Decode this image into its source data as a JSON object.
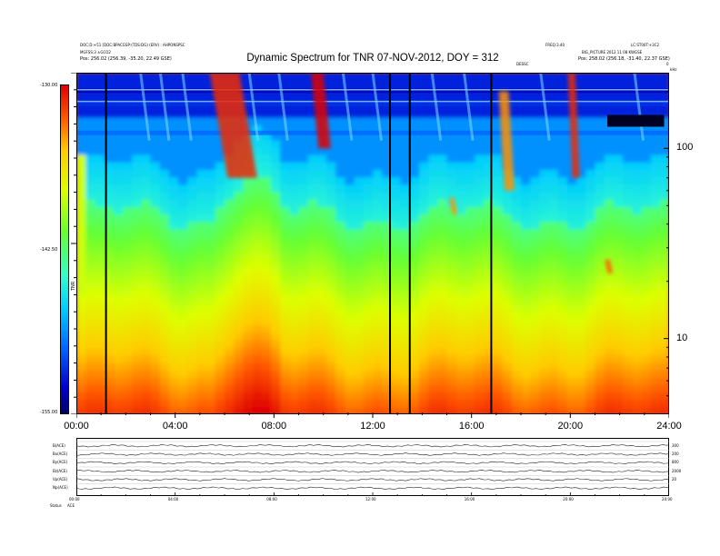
{
  "title": "Dynamic Spectrum for TNR 07-NOV-2012, DOY = 312",
  "header": {
    "left_line1": "DOC:D:+51 [DOC:BPACGSP:(TDS:DG) (ERV) : AHPONSPSC",
    "left_line2": "MGFSS:3 ±GCO2",
    "left_line3": "Pos: 256.02 (256.39, -35.20, 22.49 GSE)",
    "mid_right": "FREQ:3.40",
    "mid_label": "DESSC",
    "right_line1": "LC:ST00T:+3C2",
    "right_line2": "BIG_PICTURE 2012 11 08 KWGSE",
    "right_line3": "Pos: 258.02 (256.18, -31.40, 22.37 GSE)",
    "right_corner_1": "0",
    "right_corner_2": "kHz"
  },
  "colorbar": {
    "label": "TNR",
    "top_label": "-130.00",
    "mid_label": "-142.50",
    "bottom_label": "-155.00",
    "min": -155.0,
    "max": -130.0
  },
  "chart_data": {
    "type": "heatmap",
    "title": "Dynamic Spectrum for TNR 07-NOV-2012, DOY = 312",
    "x_ticks": [
      "00:00",
      "04:00",
      "08:00",
      "12:00",
      "16:00",
      "20:00",
      "24:00"
    ],
    "x_range_hours": [
      0,
      24
    ],
    "y_scale": "log",
    "y_ticks": [
      "100",
      "10"
    ],
    "y_tick_values": [
      100,
      10
    ],
    "y_range_khz": [
      4,
      250
    ],
    "color_range": [
      -155.0,
      -130.0
    ],
    "data_gaps_hours": [
      1.2,
      12.7,
      13.5,
      16.8
    ],
    "bursts": [
      {
        "t0": 5.4,
        "t1": 6.6,
        "f_top": 250,
        "f_bottom": 70,
        "level": 0.95
      },
      {
        "t0": 9.5,
        "t1": 10.0,
        "f_top": 250,
        "f_bottom": 100,
        "level": 1.0
      },
      {
        "t0": 17.1,
        "t1": 17.5,
        "f_top": 200,
        "f_bottom": 60,
        "level": 0.85
      },
      {
        "t0": 19.9,
        "t1": 20.2,
        "f_top": 250,
        "f_bottom": 70,
        "level": 0.95
      },
      {
        "t0": 15.1,
        "t1": 15.3,
        "f_top": 55,
        "f_bottom": 45,
        "level": 0.85
      },
      {
        "t0": 21.4,
        "t1": 21.6,
        "f_top": 26,
        "f_bottom": 22,
        "level": 0.9
      }
    ]
  },
  "bottom_panels": {
    "labels": [
      "B(ACE)",
      "Bx(ACE)",
      "By(ACE)",
      "Bz(ACE)",
      "Vp(ACE)",
      "Np(ACE)"
    ],
    "right_labels": [
      "300",
      "200",
      "800",
      "2000",
      "20"
    ],
    "x_ticks": [
      "00:00",
      "04:00",
      "08:00",
      "12:00",
      "16:00",
      "20:00",
      "24:00"
    ],
    "footer_label": "Status",
    "footer_code": "ACE"
  }
}
